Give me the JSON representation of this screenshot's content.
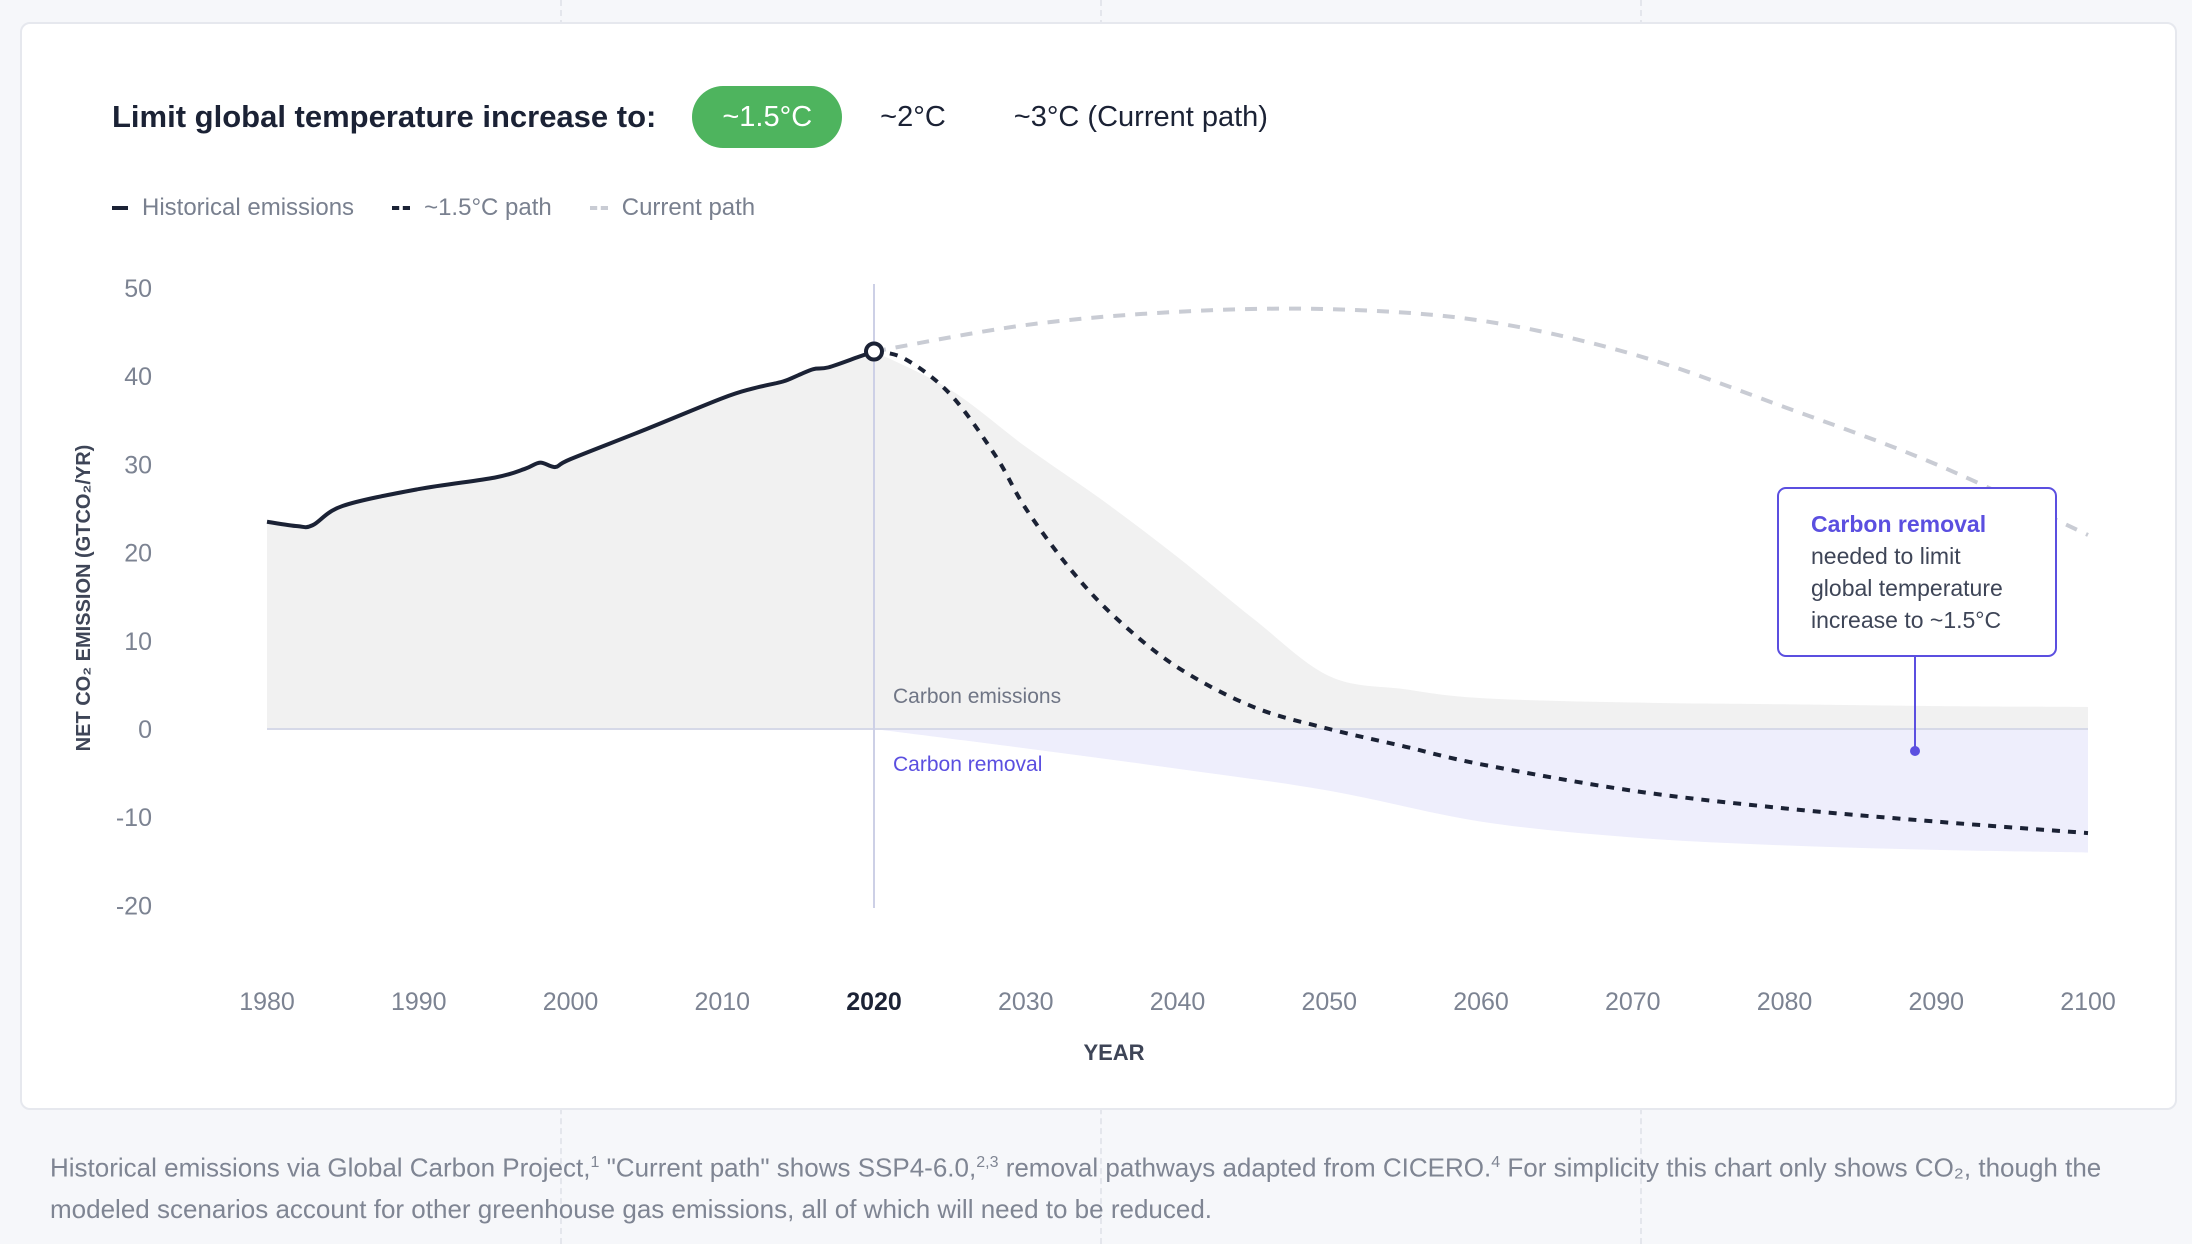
{
  "header": {
    "title": "Limit global temperature increase to:",
    "options": [
      {
        "label": "~1.5°C",
        "active": true
      },
      {
        "label": "~2°C",
        "active": false
      },
      {
        "label": "~3°C (Current path)",
        "active": false
      }
    ]
  },
  "legend": [
    {
      "label": "Historical emissions",
      "style": "solid"
    },
    {
      "label": "~1.5°C path",
      "style": "dash"
    },
    {
      "label": "Current path",
      "style": "grey"
    }
  ],
  "colors": {
    "accent": "#4eb45e",
    "line": "#1b2235",
    "current": "#c9ccd4",
    "emissions_area": "#f1f1f1",
    "removal_area": "#eeeefc",
    "removal_text": "#5b4fe0"
  },
  "chart_data": {
    "type": "line",
    "title": "",
    "xlabel": "YEAR",
    "ylabel": "NET CO₂ EMISSION (GTCO₂/YR)",
    "xlim": [
      1980,
      2100
    ],
    "ylim": [
      -20,
      50
    ],
    "x_ticks": [
      1980,
      1990,
      2000,
      2010,
      2020,
      2030,
      2040,
      2050,
      2060,
      2070,
      2080,
      2090,
      2100
    ],
    "y_ticks": [
      50,
      40,
      30,
      20,
      10,
      0,
      -10,
      -20
    ],
    "highlight_year": 2020,
    "series": [
      {
        "name": "Historical emissions",
        "style": "solid",
        "x": [
          1980,
          1982,
          1983,
          1985,
          1990,
          1995,
          1997,
          1998,
          1999,
          2000,
          2005,
          2010,
          2012,
          2014,
          2015,
          2016,
          2017,
          2019,
          2020
        ],
        "y": [
          23.5,
          23.0,
          23.1,
          25.3,
          27.2,
          28.5,
          29.5,
          30.2,
          29.7,
          30.6,
          34.0,
          37.5,
          38.6,
          39.4,
          40.1,
          40.8,
          41.0,
          42.2,
          42.8
        ]
      },
      {
        "name": "~1.5°C path",
        "style": "dash",
        "x": [
          2020,
          2022,
          2025,
          2028,
          2030,
          2033,
          2036,
          2040,
          2045,
          2050,
          2055,
          2060,
          2070,
          2080,
          2090,
          2100
        ],
        "y": [
          42.8,
          42.0,
          38.0,
          31.0,
          25.0,
          18.0,
          12.5,
          7.0,
          2.5,
          0.0,
          -2.0,
          -4.0,
          -7.0,
          -9.0,
          -10.5,
          -11.8
        ]
      },
      {
        "name": "Current path",
        "style": "grey",
        "x": [
          2020,
          2030,
          2040,
          2050,
          2060,
          2070,
          2080,
          2090,
          2100
        ],
        "y": [
          42.8,
          45.8,
          47.3,
          47.6,
          46.3,
          42.5,
          36.5,
          30.0,
          22.0
        ]
      },
      {
        "name": "Carbon emissions area",
        "style": "area",
        "x": [
          2020,
          2025,
          2030,
          2035,
          2040,
          2045,
          2050,
          2055,
          2060,
          2070,
          2080,
          2090,
          2100
        ],
        "y": [
          42.8,
          38.5,
          32.0,
          26.0,
          19.5,
          12.5,
          6.0,
          4.5,
          3.5,
          3.0,
          2.8,
          2.6,
          2.5
        ]
      },
      {
        "name": "Carbon removal area",
        "style": "area",
        "x": [
          2020,
          2030,
          2040,
          2050,
          2060,
          2070,
          2080,
          2090,
          2100
        ],
        "y": [
          0.0,
          -2.2,
          -4.5,
          -7.0,
          -10.5,
          -12.3,
          -13.2,
          -13.7,
          -14.0
        ]
      }
    ],
    "annotations": {
      "carbon_emissions_label": "Carbon emissions",
      "carbon_removal_label": "Carbon removal",
      "callout_title": "Carbon removal",
      "callout_lines": [
        "needed to limit",
        "global temperature",
        "increase to ~1.5°C"
      ]
    }
  },
  "footnote": {
    "p1": "Historical emissions via Global Carbon Project,",
    "s1": "1",
    "p2": " \"Current path\" shows SSP4-6.0,",
    "s2": "2,3",
    "p3": " removal pathways adapted from CICERO.",
    "s3": "4",
    "p4": " For simplicity this chart only shows CO₂, though the modeled scenarios account for other greenhouse gas emissions, all of which will need to be reduced."
  }
}
